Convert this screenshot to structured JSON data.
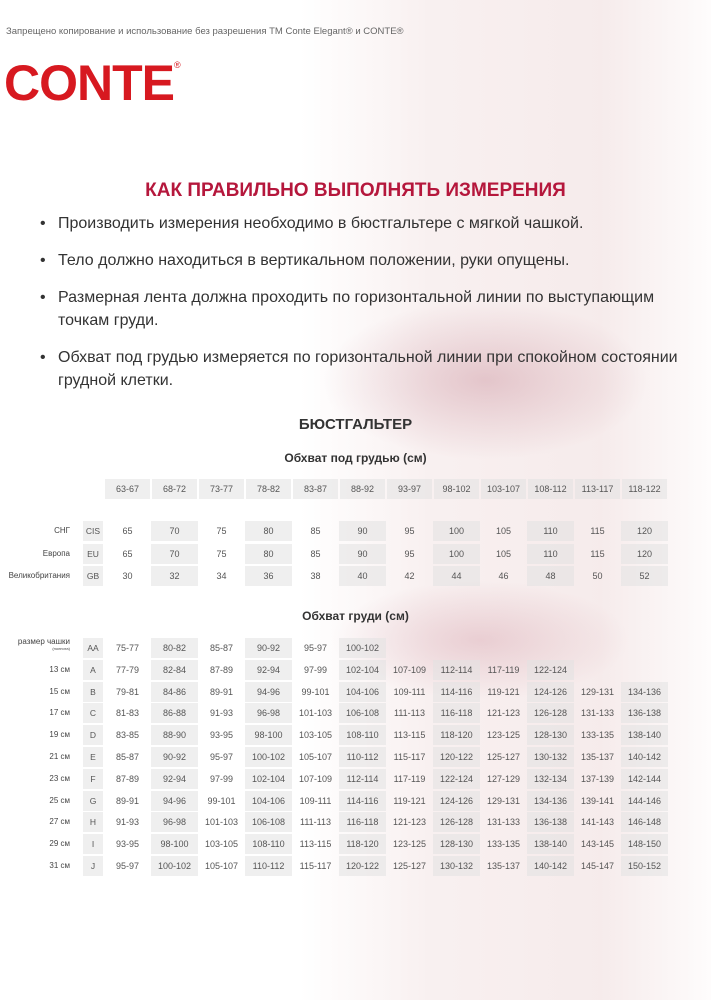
{
  "copyright": "Запрещено копирование и использование без разрешения ТМ Conte Elegant® и CONTE®",
  "logo": "CONTE",
  "colors": {
    "logo": "#d71920",
    "heading": "#b5173c"
  },
  "heading": "КАК ПРАВИЛЬНО ВЫПОЛНЯТЬ ИЗМЕРЕНИЯ",
  "bullets": [
    "Производить измерения необходимо в бюстгальтере с мягкой чашкой.",
    "Тело должно находиться в вертикальном положении, руки опущены.",
    "Размерная лента должна проходить по горизонтальной линии по выступающим точкам груди.",
    "Обхват под грудью измеряется по горизонтальной линии при спокойном состоянии грудной клетки."
  ],
  "section_title": "БЮСТГАЛЬТЕР",
  "underbust": {
    "title": "Обхват под грудью (см)",
    "header": [
      "63-67",
      "68-72",
      "73-77",
      "78-82",
      "83-87",
      "88-92",
      "93-97",
      "98-102",
      "103-107",
      "108-112",
      "113-117",
      "118-122"
    ],
    "rows": [
      {
        "label": "СНГ",
        "code": "CIS",
        "values": [
          "65",
          "70",
          "75",
          "80",
          "85",
          "90",
          "95",
          "100",
          "105",
          "110",
          "115",
          "120"
        ]
      },
      {
        "label": "Европа",
        "code": "EU",
        "values": [
          "65",
          "70",
          "75",
          "80",
          "85",
          "90",
          "95",
          "100",
          "105",
          "110",
          "115",
          "120"
        ]
      },
      {
        "label": "Великобритания",
        "code": "GB",
        "values": [
          "30",
          "32",
          "34",
          "36",
          "38",
          "40",
          "42",
          "44",
          "46",
          "48",
          "50",
          "52"
        ]
      }
    ]
  },
  "bust": {
    "title": "Обхват груди (см)",
    "rows": [
      {
        "label": "размер чашки",
        "note": "(полнота)",
        "code": "AA",
        "values": [
          "75-77",
          "80-82",
          "85-87",
          "90-92",
          "95-97",
          "100-102",
          "",
          "",
          "",
          "",
          "",
          ""
        ]
      },
      {
        "label": "13 см",
        "code": "A",
        "values": [
          "77-79",
          "82-84",
          "87-89",
          "92-94",
          "97-99",
          "102-104",
          "107-109",
          "112-114",
          "117-119",
          "122-124",
          "",
          ""
        ]
      },
      {
        "label": "15 см",
        "code": "B",
        "values": [
          "79-81",
          "84-86",
          "89-91",
          "94-96",
          "99-101",
          "104-106",
          "109-111",
          "114-116",
          "119-121",
          "124-126",
          "129-131",
          "134-136"
        ]
      },
      {
        "label": "17 см",
        "code": "C",
        "values": [
          "81-83",
          "86-88",
          "91-93",
          "96-98",
          "101-103",
          "106-108",
          "111-113",
          "116-118",
          "121-123",
          "126-128",
          "131-133",
          "136-138"
        ]
      },
      {
        "label": "19 см",
        "code": "D",
        "values": [
          "83-85",
          "88-90",
          "93-95",
          "98-100",
          "103-105",
          "108-110",
          "113-115",
          "118-120",
          "123-125",
          "128-130",
          "133-135",
          "138-140"
        ]
      },
      {
        "label": "21 см",
        "code": "E",
        "values": [
          "85-87",
          "90-92",
          "95-97",
          "100-102",
          "105-107",
          "110-112",
          "115-117",
          "120-122",
          "125-127",
          "130-132",
          "135-137",
          "140-142"
        ]
      },
      {
        "label": "23 см",
        "code": "F",
        "values": [
          "87-89",
          "92-94",
          "97-99",
          "102-104",
          "107-109",
          "112-114",
          "117-119",
          "122-124",
          "127-129",
          "132-134",
          "137-139",
          "142-144"
        ]
      },
      {
        "label": "25 см",
        "code": "G",
        "values": [
          "89-91",
          "94-96",
          "99-101",
          "104-106",
          "109-111",
          "114-116",
          "119-121",
          "124-126",
          "129-131",
          "134-136",
          "139-141",
          "144-146"
        ]
      },
      {
        "label": "27 см",
        "code": "H",
        "values": [
          "91-93",
          "96-98",
          "101-103",
          "106-108",
          "111-113",
          "116-118",
          "121-123",
          "126-128",
          "131-133",
          "136-138",
          "141-143",
          "146-148"
        ]
      },
      {
        "label": "29 см",
        "code": "I",
        "values": [
          "93-95",
          "98-100",
          "103-105",
          "108-110",
          "113-115",
          "118-120",
          "123-125",
          "128-130",
          "133-135",
          "138-140",
          "143-145",
          "148-150"
        ]
      },
      {
        "label": "31 см",
        "code": "J",
        "values": [
          "95-97",
          "100-102",
          "105-107",
          "110-112",
          "115-117",
          "120-122",
          "125-127",
          "130-132",
          "135-137",
          "140-142",
          "145-147",
          "150-152"
        ]
      }
    ]
  }
}
